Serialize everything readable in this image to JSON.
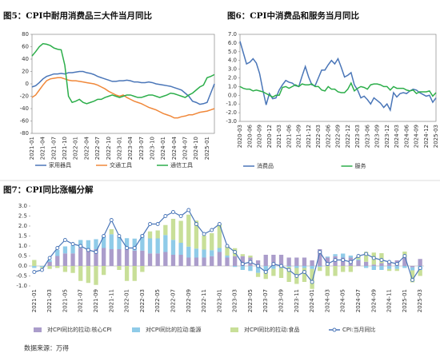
{
  "chart_data": [
    {
      "type": "line",
      "title": "图5：CPI中耐用消费品三大件当月同比",
      "frame": true,
      "categories": [
        "2021-01",
        null,
        null,
        "2021-04",
        null,
        null,
        "2021-07",
        null,
        null,
        "2021-10",
        null,
        null,
        "2022-01",
        null,
        null,
        "2022-04",
        null,
        null,
        "2022-07",
        null,
        null,
        "2022-10",
        null,
        null,
        "2023-01",
        null,
        null,
        "2023-04",
        null,
        null,
        "2023-07",
        null,
        null,
        "2023-10",
        null,
        null,
        "2024-01",
        null,
        null,
        "2024-04",
        null,
        null,
        "2024-07",
        null,
        null,
        "2024-10",
        null,
        null,
        "2025-01",
        null,
        null
      ],
      "ylim": [
        -80,
        80
      ],
      "yticks": [
        80,
        60,
        40,
        20,
        0,
        -20,
        -40,
        -60,
        -80
      ],
      "series": [
        {
          "name": "家用器具",
          "color": "#4a76b8",
          "values": [
            -5,
            -3,
            2,
            8,
            12,
            14,
            16,
            16,
            17,
            16,
            18,
            18,
            19,
            20,
            20,
            18,
            17,
            15,
            12,
            10,
            8,
            6,
            4,
            4,
            5,
            5,
            6,
            5,
            3,
            3,
            2,
            2,
            3,
            2,
            0,
            -1,
            -2,
            -3,
            -4,
            -6,
            -8,
            -10,
            -15,
            -20,
            -28,
            -30,
            -33,
            -32,
            -30,
            -15,
            0
          ]
        },
        {
          "name": "交通工具",
          "color": "#f0883a",
          "values": [
            -22,
            -18,
            -10,
            -2,
            5,
            8,
            9,
            10,
            10,
            8,
            6,
            5,
            5,
            4,
            3,
            2,
            1,
            0,
            -2,
            -5,
            -8,
            -12,
            -15,
            -18,
            -20,
            -18,
            -22,
            -25,
            -28,
            -30,
            -32,
            -35,
            -38,
            -40,
            -42,
            -45,
            -48,
            -50,
            -52,
            -55,
            -55,
            -53,
            -52,
            -50,
            -50,
            -48,
            -46,
            -45,
            -44,
            -42,
            -40
          ]
        },
        {
          "name": "通信工具",
          "color": "#2cae4a",
          "values": [
            45,
            52,
            60,
            65,
            64,
            62,
            58,
            56,
            55,
            30,
            -20,
            -30,
            -28,
            -25,
            -30,
            -32,
            -30,
            -28,
            -25,
            -25,
            -22,
            -20,
            -18,
            -20,
            -22,
            -20,
            -18,
            -18,
            -20,
            -22,
            -22,
            -20,
            -18,
            -18,
            -20,
            -22,
            -20,
            -18,
            -15,
            -16,
            -18,
            -20,
            -22,
            -18,
            -15,
            -10,
            -5,
            -2,
            10,
            12,
            15
          ]
        }
      ]
    },
    {
      "type": "line",
      "title": "图6：CPI中消费品和服务当月同比",
      "frame": true,
      "categories": [
        "2020-03",
        null,
        null,
        "2020-06",
        null,
        null,
        "2020-09",
        null,
        null,
        "2020-12",
        null,
        null,
        "2021-03",
        null,
        null,
        "2021-06",
        null,
        null,
        "2021-09",
        null,
        null,
        "2021-12",
        null,
        null,
        "2022-03",
        null,
        null,
        "2022-06",
        null,
        null,
        "2022-09",
        null,
        null,
        "2022-12",
        null,
        null,
        "2023-03",
        null,
        null,
        "2023-06",
        null,
        null,
        "2023-09",
        null,
        null,
        "2023-12",
        null,
        null,
        "2024-03",
        null,
        null,
        "2024-06",
        null,
        null,
        "2024-09",
        null,
        null,
        "2024-12",
        null,
        null,
        "2025-03"
      ],
      "ylim": [
        -3,
        7
      ],
      "yticks": [
        {
          "value": 7,
          "label": "7.0"
        },
        {
          "value": 6,
          "label": "6.0"
        },
        {
          "value": 5,
          "label": "5.0"
        },
        {
          "value": 4,
          "label": "4.0"
        },
        {
          "value": 3,
          "label": "3.0"
        },
        {
          "value": 2,
          "label": "2.0"
        },
        {
          "value": 1,
          "label": "1.0"
        },
        {
          "value": 0,
          "label": "0.0"
        },
        {
          "value": -1,
          "label": "-1.0"
        },
        {
          "value": -2,
          "label": "-2.0"
        },
        {
          "value": -3,
          "label": "-3.0"
        }
      ],
      "series": [
        {
          "name": "消费品",
          "color": "#4a76b8",
          "values": [
            6.2,
            4.9,
            3.6,
            3.8,
            4.2,
            3.7,
            2.5,
            0.6,
            -1.1,
            0.2,
            -0.4,
            -0.3,
            0.6,
            1.2,
            1.7,
            1.5,
            1.4,
            1.1,
            1.0,
            2.2,
            3.3,
            2.1,
            1.2,
            1.1,
            2.0,
            2.9,
            2.9,
            3.5,
            4.0,
            3.6,
            4.2,
            3.2,
            2.1,
            2.3,
            2.6,
            1.2,
            0.6,
            -0.3,
            -0.1,
            -0.5,
            -1.0,
            -0.3,
            -0.6,
            -0.9,
            -1.4,
            -1.0,
            -1.7,
            0.3,
            -0.2,
            0.2,
            0.3,
            0.2,
            0.5,
            0.7,
            0.6,
            0.3,
            0.1,
            -0.1,
            0.0,
            -0.8,
            -0.3
          ]
        },
        {
          "name": "服务",
          "color": "#2cae4a",
          "values": [
            1.0,
            0.8,
            0.7,
            0.7,
            0.5,
            0.6,
            0.5,
            0.4,
            0.2,
            0.0,
            -0.2,
            0.0,
            0.0,
            0.9,
            1.0,
            0.8,
            1.0,
            1.2,
            1.0,
            1.3,
            1.2,
            1.2,
            1.3,
            1.0,
            1.0,
            0.6,
            0.5,
            1.0,
            0.7,
            0.7,
            0.4,
            0.3,
            0.3,
            0.7,
            1.4,
            0.5,
            0.8,
            1.0,
            0.9,
            0.7,
            1.2,
            1.3,
            1.3,
            1.2,
            1.0,
            1.0,
            0.6,
            1.0,
            0.8,
            0.8,
            0.8,
            0.6,
            0.5,
            0.6,
            0.2,
            0.4,
            0.4,
            0.4,
            0.5,
            -0.1,
            0.3
          ]
        }
      ]
    },
    {
      "type": "bar",
      "title": "图7：CPI同比涨幅分解",
      "stacked": true,
      "categories": [
        "2021-01",
        null,
        "2021-03",
        null,
        "2021-05",
        null,
        "2021-07",
        null,
        "2021-09",
        null,
        "2021-11",
        null,
        "2022-01",
        null,
        "2022-03",
        null,
        "2022-05",
        null,
        "2022-07",
        null,
        "2022-09",
        null,
        "2022-11",
        null,
        "2023-01",
        null,
        "2023-03",
        null,
        "2023-05",
        null,
        "2023-07",
        null,
        "2023-09",
        null,
        "2023-11",
        null,
        "2024-01",
        null,
        "2024-03",
        null,
        "2024-05",
        null,
        "2024-07",
        null,
        "2024-09",
        null,
        "2024-11",
        null,
        "2025-01",
        null,
        "2025-03"
      ],
      "ylim": [
        -1,
        3
      ],
      "yticks": [
        {
          "value": 3,
          "label": "3.0"
        },
        2.5,
        {
          "value": 2,
          "label": "2.0"
        },
        1.5,
        {
          "value": 1,
          "label": "1.0"
        },
        0.5,
        {
          "value": 0,
          "label": "0.0"
        },
        -0.5,
        {
          "value": -1,
          "label": "-1.0"
        }
      ],
      "series": [
        {
          "name": "对CPI同比的拉动:核心CPI",
          "type": "bar",
          "color": "#ab9dcb",
          "values": [
            0.0,
            0.0,
            0.2,
            0.5,
            0.63,
            0.63,
            0.9,
            0.84,
            0.84,
            0.9,
            0.84,
            0.84,
            0.84,
            0.77,
            0.77,
            0.63,
            0.63,
            0.7,
            0.56,
            0.56,
            0.42,
            0.42,
            0.42,
            0.49,
            0.7,
            0.42,
            0.49,
            0.49,
            0.42,
            0.28,
            0.56,
            0.56,
            0.56,
            0.42,
            0.42,
            0.42,
            0.28,
            0.84,
            0.42,
            0.49,
            0.42,
            0.42,
            0.28,
            0.21,
            0.07,
            0.14,
            0.21,
            0.28,
            0.42,
            -0.07,
            0.35
          ]
        },
        {
          "name": "对CPI同比的拉动:能源",
          "type": "bar",
          "color": "#8fcbe8",
          "values": [
            -0.1,
            -0.05,
            0.1,
            0.3,
            0.35,
            0.4,
            0.4,
            0.45,
            0.5,
            0.6,
            0.75,
            0.6,
            0.55,
            0.6,
            0.8,
            0.75,
            0.75,
            0.85,
            0.75,
            0.6,
            0.55,
            0.45,
            0.4,
            0.3,
            0.2,
            0.1,
            -0.05,
            -0.2,
            -0.25,
            -0.35,
            -0.3,
            -0.15,
            -0.1,
            -0.05,
            -0.1,
            -0.1,
            -0.15,
            -0.05,
            0.05,
            0.1,
            0.2,
            0.1,
            0.05,
            -0.1,
            -0.2,
            -0.2,
            -0.15,
            -0.15,
            -0.1,
            -0.15,
            -0.2
          ]
        },
        {
          "name": "对CPI同比的拉动:食品",
          "type": "bar",
          "color": "#c8df98",
          "values": [
            0.3,
            -0.05,
            -0.15,
            -0.1,
            -0.3,
            -0.35,
            -0.75,
            -0.85,
            -0.95,
            -0.45,
            0.25,
            -0.2,
            -0.75,
            -0.75,
            -0.3,
            0.35,
            0.4,
            0.5,
            1.05,
            1.1,
            1.6,
            1.4,
            0.7,
            0.85,
            1.2,
            0.5,
            0.4,
            0.1,
            0.1,
            -0.2,
            -0.35,
            -0.35,
            -0.5,
            -0.75,
            -0.8,
            -0.7,
            -1.0,
            -0.2,
            -0.5,
            -0.5,
            -0.3,
            -0.3,
            0.2,
            0.5,
            0.6,
            0.5,
            -0.1,
            -0.1,
            0.3,
            -0.6,
            -0.3
          ]
        },
        {
          "name": "CPI:当月同比",
          "type": "line",
          "color": "#4a76b8",
          "values": [
            -0.3,
            -0.2,
            0.4,
            0.9,
            1.3,
            1.1,
            1.0,
            0.8,
            0.7,
            1.5,
            2.3,
            1.5,
            0.9,
            0.9,
            1.5,
            2.1,
            2.1,
            2.5,
            2.7,
            2.5,
            2.8,
            2.1,
            1.6,
            1.8,
            2.1,
            1.0,
            0.7,
            0.1,
            0.2,
            0.0,
            -0.3,
            0.1,
            0.0,
            -0.2,
            -0.5,
            -0.3,
            -0.8,
            0.7,
            0.1,
            0.3,
            0.3,
            0.2,
            0.5,
            0.6,
            0.4,
            0.3,
            0.2,
            0.1,
            0.5,
            -0.7,
            -0.1
          ]
        }
      ]
    }
  ],
  "footer": "数据来源：万得"
}
